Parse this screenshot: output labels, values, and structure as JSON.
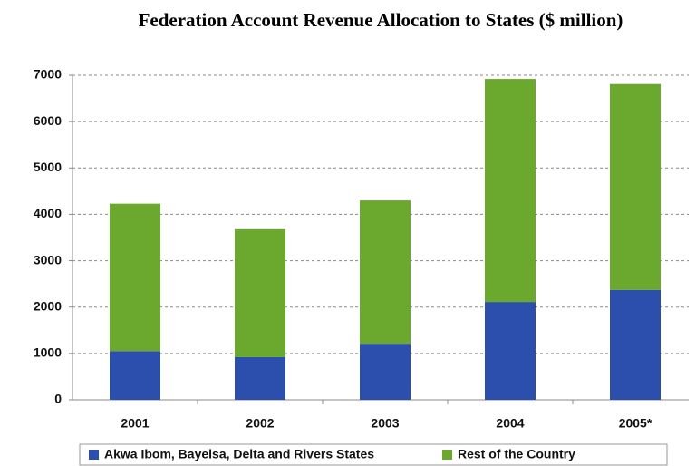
{
  "chart_data": {
    "type": "stacked_bar",
    "title": "Federation Account Revenue Allocation to States ($ million)",
    "categories": [
      "2001",
      "2002",
      "2003",
      "2004",
      "2005*"
    ],
    "series": [
      {
        "name": "Akwa Ibom, Bayelsa, Delta and Rivers States",
        "color": "#2c4fae",
        "values": [
          1050,
          920,
          1210,
          2110,
          2370
        ]
      },
      {
        "name": "Rest of the Country",
        "color": "#6aa82e",
        "values": [
          3180,
          2760,
          3090,
          4810,
          4440
        ]
      }
    ],
    "ylim": [
      0,
      7000
    ],
    "yticks": [
      0,
      1000,
      2000,
      3000,
      4000,
      5000,
      6000,
      7000
    ],
    "grid": true,
    "legend": "bottom"
  }
}
